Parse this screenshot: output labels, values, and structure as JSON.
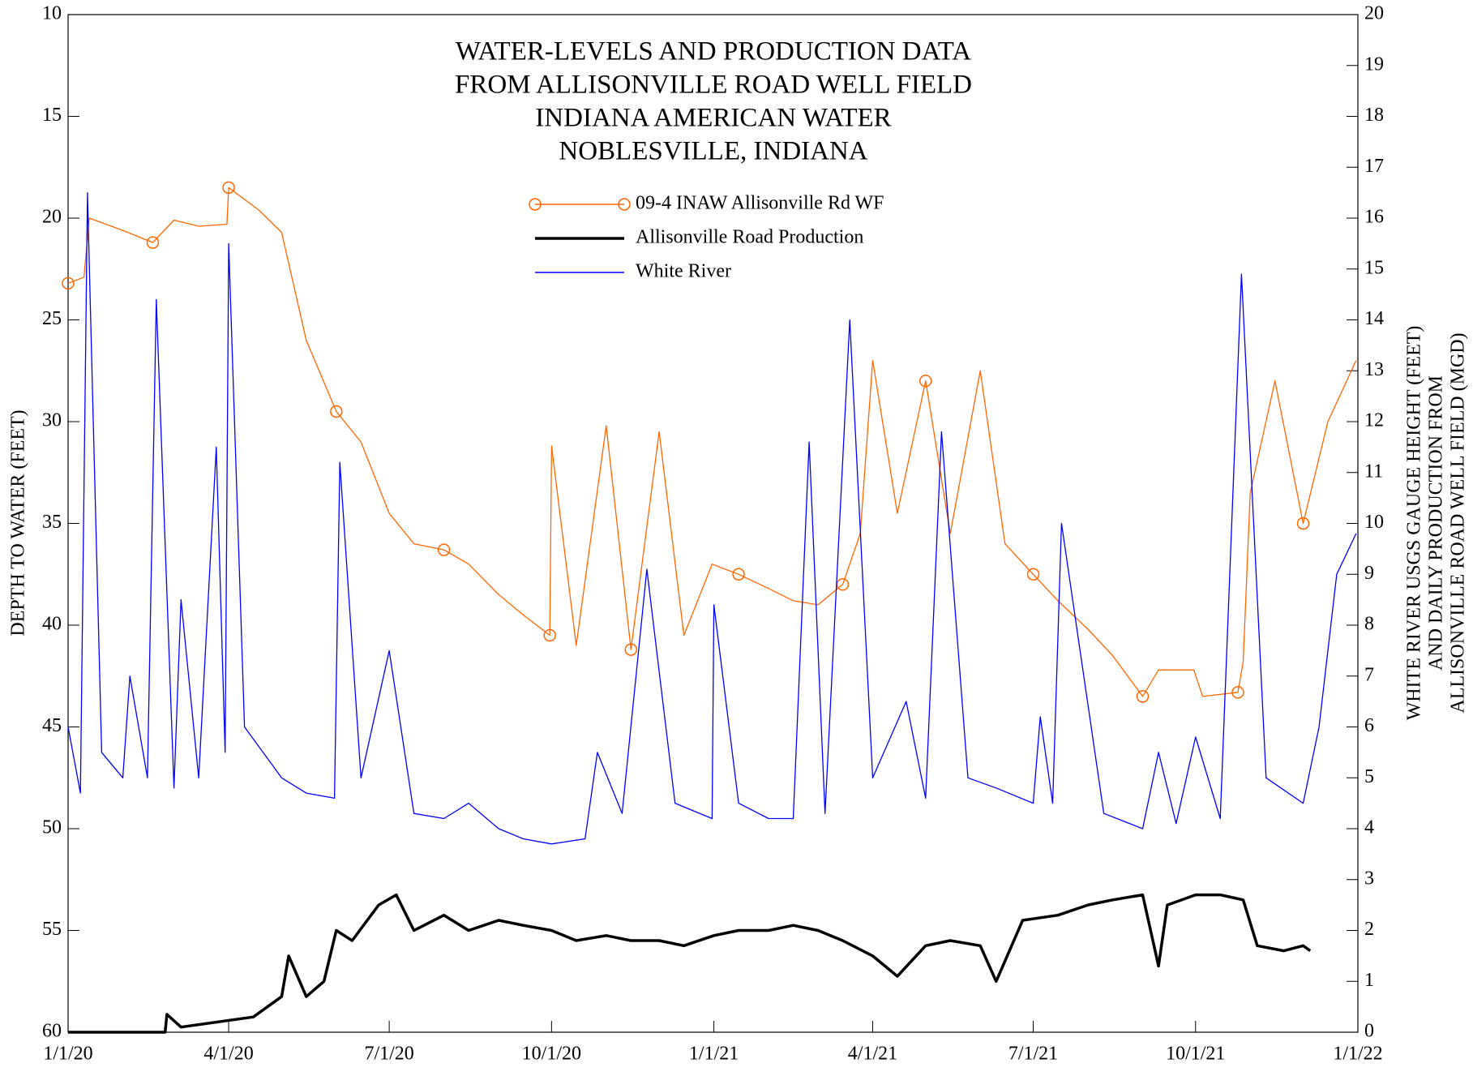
{
  "chart_data": {
    "type": "line",
    "title": [
      "WATER-LEVELS AND PRODUCTION DATA",
      "FROM ALLISONVILLE ROAD WELL FIELD",
      "INDIANA AMERICAN WATER",
      "NOBLESVILLE, INDIANA"
    ],
    "ylabel": "DEPTH TO WATER (FEET)",
    "y2label": [
      "WHITE RIVER USGS GAUGE HEIGHT (FEET)",
      "AND DAILY PRODUCTION FROM",
      "ALLISONVILLE ROAD WELL FIELD (MGD)"
    ],
    "xlim": [
      "2020-01-01",
      "2022-01-01"
    ],
    "xticks": [
      {
        "value": "2020-01-01",
        "label": "1/1/20"
      },
      {
        "value": "2020-04-01",
        "label": "4/1/20"
      },
      {
        "value": "2020-07-01",
        "label": "7/1/20"
      },
      {
        "value": "2020-10-01",
        "label": "10/1/20"
      },
      {
        "value": "2021-01-01",
        "label": "1/1/21"
      },
      {
        "value": "2021-04-01",
        "label": "4/1/21"
      },
      {
        "value": "2021-07-01",
        "label": "7/1/21"
      },
      {
        "value": "2021-10-01",
        "label": "10/1/21"
      },
      {
        "value": "2022-01-01",
        "label": "1/1/22"
      }
    ],
    "ylim": [
      10,
      60
    ],
    "y_inverted": true,
    "yticks": [
      10,
      15,
      20,
      25,
      30,
      35,
      40,
      45,
      50,
      55,
      60
    ],
    "y2lim": [
      0,
      20
    ],
    "y2ticks": [
      0,
      1,
      2,
      3,
      4,
      5,
      6,
      7,
      8,
      9,
      10,
      11,
      12,
      13,
      14,
      15,
      16,
      17,
      18,
      19,
      20
    ],
    "legend": "top center",
    "series": [
      {
        "name": "09-4 INAW Allisonville Rd WF",
        "color": "#ff6600",
        "marker": "circle",
        "x": [
          "2020-01-01",
          "2020-01-10",
          "2020-01-13",
          "2020-02-01",
          "2020-02-18",
          "2020-03-01",
          "2020-03-15",
          "2020-03-31",
          "2020-04-01",
          "2020-04-18",
          "2020-05-01",
          "2020-05-15",
          "2020-06-01",
          "2020-06-15",
          "2020-07-01",
          "2020-07-15",
          "2020-08-01",
          "2020-08-15",
          "2020-09-01",
          "2020-09-15",
          "2020-09-30",
          "2020-10-01",
          "2020-10-15",
          "2020-11-01",
          "2020-11-15",
          "2020-12-01",
          "2020-12-15",
          "2020-12-31",
          "2021-01-15",
          "2021-02-01",
          "2021-02-15",
          "2021-03-01",
          "2021-03-15",
          "2021-03-25",
          "2021-04-01",
          "2021-04-15",
          "2021-05-01",
          "2021-05-15",
          "2021-06-01",
          "2021-06-15",
          "2021-07-01",
          "2021-07-15",
          "2021-08-01",
          "2021-08-15",
          "2021-09-01",
          "2021-09-10",
          "2021-09-30",
          "2021-10-05",
          "2021-10-25",
          "2021-10-28",
          "2021-11-01",
          "2021-11-15",
          "2021-12-01",
          "2021-12-15",
          "2021-12-31"
        ],
        "values": [
          23.2,
          22.9,
          20.0,
          20.6,
          21.2,
          20.1,
          20.4,
          20.3,
          18.5,
          19.6,
          20.7,
          26.0,
          29.5,
          31.0,
          34.5,
          36.0,
          36.3,
          37.0,
          38.5,
          39.5,
          40.5,
          31.2,
          41.0,
          30.2,
          41.2,
          30.5,
          40.5,
          37.0,
          37.5,
          38.2,
          38.8,
          39.0,
          38.0,
          35.5,
          27.0,
          34.5,
          28.0,
          35.5,
          27.5,
          36.0,
          37.5,
          38.8,
          40.2,
          41.5,
          43.5,
          42.2,
          42.2,
          43.5,
          43.3,
          41.8,
          33.5,
          28.0,
          35.0,
          30.0,
          27.0
        ]
      },
      {
        "name": "Allisonville Road Production",
        "color": "#000000",
        "axis": "y2",
        "x": [
          "2020-01-01",
          "2020-02-25",
          "2020-02-26",
          "2020-03-05",
          "2020-04-15",
          "2020-05-01",
          "2020-05-05",
          "2020-05-15",
          "2020-05-25",
          "2020-06-01",
          "2020-06-10",
          "2020-06-25",
          "2020-07-05",
          "2020-07-15",
          "2020-08-01",
          "2020-08-15",
          "2020-09-01",
          "2020-09-15",
          "2020-10-01",
          "2020-10-15",
          "2020-11-01",
          "2020-11-15",
          "2020-12-01",
          "2020-12-15",
          "2021-01-01",
          "2021-01-15",
          "2021-02-01",
          "2021-02-15",
          "2021-03-01",
          "2021-03-15",
          "2021-04-01",
          "2021-04-15",
          "2021-05-01",
          "2021-05-15",
          "2021-06-01",
          "2021-06-10",
          "2021-06-25",
          "2021-07-15",
          "2021-08-01",
          "2021-08-15",
          "2021-09-01",
          "2021-09-10",
          "2021-09-15",
          "2021-10-01",
          "2021-10-15",
          "2021-10-28",
          "2021-11-05",
          "2021-11-20",
          "2021-12-01",
          "2021-12-05"
        ],
        "values": [
          0,
          0,
          0.35,
          0.1,
          0.3,
          0.7,
          1.5,
          0.7,
          1.0,
          2.0,
          1.8,
          2.5,
          2.7,
          2.0,
          2.3,
          2.0,
          2.2,
          2.1,
          2.0,
          1.8,
          1.9,
          1.8,
          1.8,
          1.7,
          1.9,
          2.0,
          2.0,
          2.1,
          2.0,
          1.8,
          1.5,
          1.1,
          1.7,
          1.8,
          1.7,
          1.0,
          2.2,
          2.3,
          2.5,
          2.6,
          2.7,
          1.3,
          2.5,
          2.7,
          2.7,
          2.6,
          1.7,
          1.6,
          1.7,
          1.6
        ]
      },
      {
        "name": "White River",
        "color": "#0000ff",
        "axis": "y2",
        "x": [
          "2020-01-01",
          "2020-01-08",
          "2020-01-12",
          "2020-01-20",
          "2020-02-01",
          "2020-02-05",
          "2020-02-15",
          "2020-02-20",
          "2020-03-01",
          "2020-03-05",
          "2020-03-15",
          "2020-03-25",
          "2020-03-30",
          "2020-04-01",
          "2020-04-10",
          "2020-05-01",
          "2020-05-15",
          "2020-05-31",
          "2020-06-03",
          "2020-06-15",
          "2020-07-01",
          "2020-07-15",
          "2020-08-01",
          "2020-08-15",
          "2020-09-01",
          "2020-09-15",
          "2020-10-01",
          "2020-10-20",
          "2020-10-27",
          "2020-11-10",
          "2020-11-24",
          "2020-12-10",
          "2020-12-31",
          "2021-01-01",
          "2021-01-15",
          "2021-02-01",
          "2021-02-15",
          "2021-02-24",
          "2021-03-05",
          "2021-03-19",
          "2021-04-01",
          "2021-04-20",
          "2021-05-01",
          "2021-05-10",
          "2021-05-25",
          "2021-06-10",
          "2021-07-01",
          "2021-07-05",
          "2021-07-12",
          "2021-07-17",
          "2021-08-10",
          "2021-09-01",
          "2021-09-10",
          "2021-09-20",
          "2021-10-01",
          "2021-10-15",
          "2021-10-27",
          "2021-11-10",
          "2021-12-01",
          "2021-12-10",
          "2021-12-20",
          "2021-12-31"
        ],
        "values": [
          6.0,
          4.7,
          16.5,
          5.5,
          5.0,
          7.0,
          5.0,
          14.4,
          4.8,
          8.5,
          5.0,
          11.5,
          5.5,
          15.5,
          6.0,
          5.0,
          4.7,
          4.6,
          11.2,
          5.0,
          7.5,
          4.3,
          4.2,
          4.5,
          4.0,
          3.8,
          3.7,
          3.8,
          5.5,
          4.3,
          9.1,
          4.5,
          4.2,
          8.4,
          4.5,
          4.2,
          4.2,
          11.6,
          4.3,
          14.0,
          5.0,
          6.5,
          4.6,
          11.8,
          5.0,
          4.8,
          4.5,
          6.2,
          4.5,
          10.0,
          4.3,
          4.0,
          5.5,
          4.1,
          5.8,
          4.2,
          14.9,
          5.0,
          4.5,
          6.0,
          9.0,
          9.8
        ]
      }
    ]
  }
}
